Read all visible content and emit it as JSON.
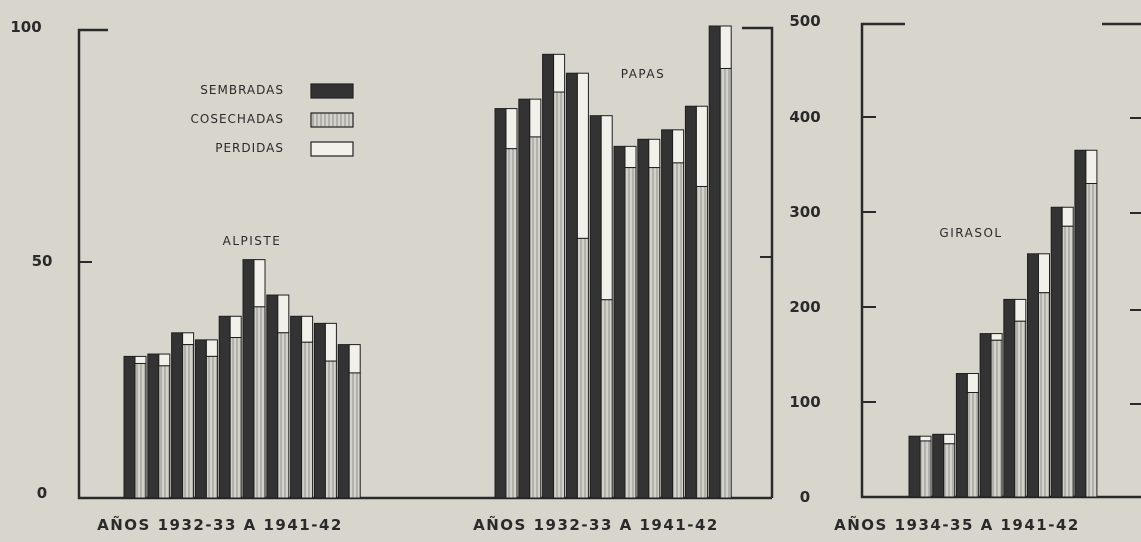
{
  "chart_data": [
    {
      "type": "bar",
      "title": "ALPISTE",
      "xlabel": "AÑOS 1932-33 A 1941-42",
      "ylim": [
        0,
        100
      ],
      "yticks": [
        "0",
        "50",
        "100"
      ],
      "series": [
        {
          "name": "SEMBRADAS",
          "values": [
            30,
            30.5,
            35,
            33.5,
            38.5,
            50.5,
            43,
            38.5,
            37,
            32.5
          ]
        },
        {
          "name": "COSECHADAS",
          "values": [
            28.5,
            28,
            32.5,
            30,
            34,
            40.5,
            35,
            33,
            29,
            26.5
          ]
        },
        {
          "name": "PERDIDAS",
          "values": [
            1.5,
            2.5,
            2.5,
            3.5,
            4.5,
            10,
            8,
            5.5,
            8,
            6
          ]
        }
      ]
    },
    {
      "type": "bar",
      "title": "PAPAS",
      "xlabel": "AÑOS 1932-33 A 1941-42",
      "ylim": [
        0,
        100
      ],
      "series": [
        {
          "name": "SEMBRADAS",
          "values": [
            82.5,
            84.5,
            94,
            90,
            81,
            74.5,
            76,
            78,
            83,
            100
          ]
        },
        {
          "name": "COSECHADAS",
          "values": [
            74,
            76.5,
            86,
            55,
            42,
            70,
            70,
            71,
            66,
            91
          ]
        },
        {
          "name": "PERDIDAS",
          "values": [
            8.5,
            8,
            8,
            35,
            39,
            4.5,
            6,
            7,
            17,
            9
          ]
        }
      ]
    },
    {
      "type": "bar",
      "title": "GIRASOL",
      "xlabel": "AÑOS 1934-35 A 1941-42",
      "ylim": [
        0,
        500
      ],
      "yticks": [
        "0",
        "100",
        "200",
        "300",
        "400",
        "500"
      ],
      "series": [
        {
          "name": "SEMBRADAS",
          "values": [
            64,
            66,
            130,
            172,
            208,
            256,
            305,
            365
          ]
        },
        {
          "name": "COSECHADAS",
          "values": [
            59,
            56,
            110,
            165,
            185,
            215,
            285,
            330
          ]
        },
        {
          "name": "PERDIDAS",
          "values": [
            5,
            10,
            20,
            7,
            23,
            41,
            20,
            35
          ]
        }
      ]
    }
  ],
  "legend": [
    {
      "label": "SEMBRADAS",
      "pattern": "dark"
    },
    {
      "label": "COSECHADAS",
      "pattern": "hatched"
    },
    {
      "label": "PERDIDAS",
      "pattern": "white"
    }
  ],
  "colors": {
    "background": "#d8d5cd",
    "ink": "#2a2a2a",
    "sown": "#333333",
    "harvested": "#c9c9c6",
    "lost": "#f2f0ea"
  }
}
